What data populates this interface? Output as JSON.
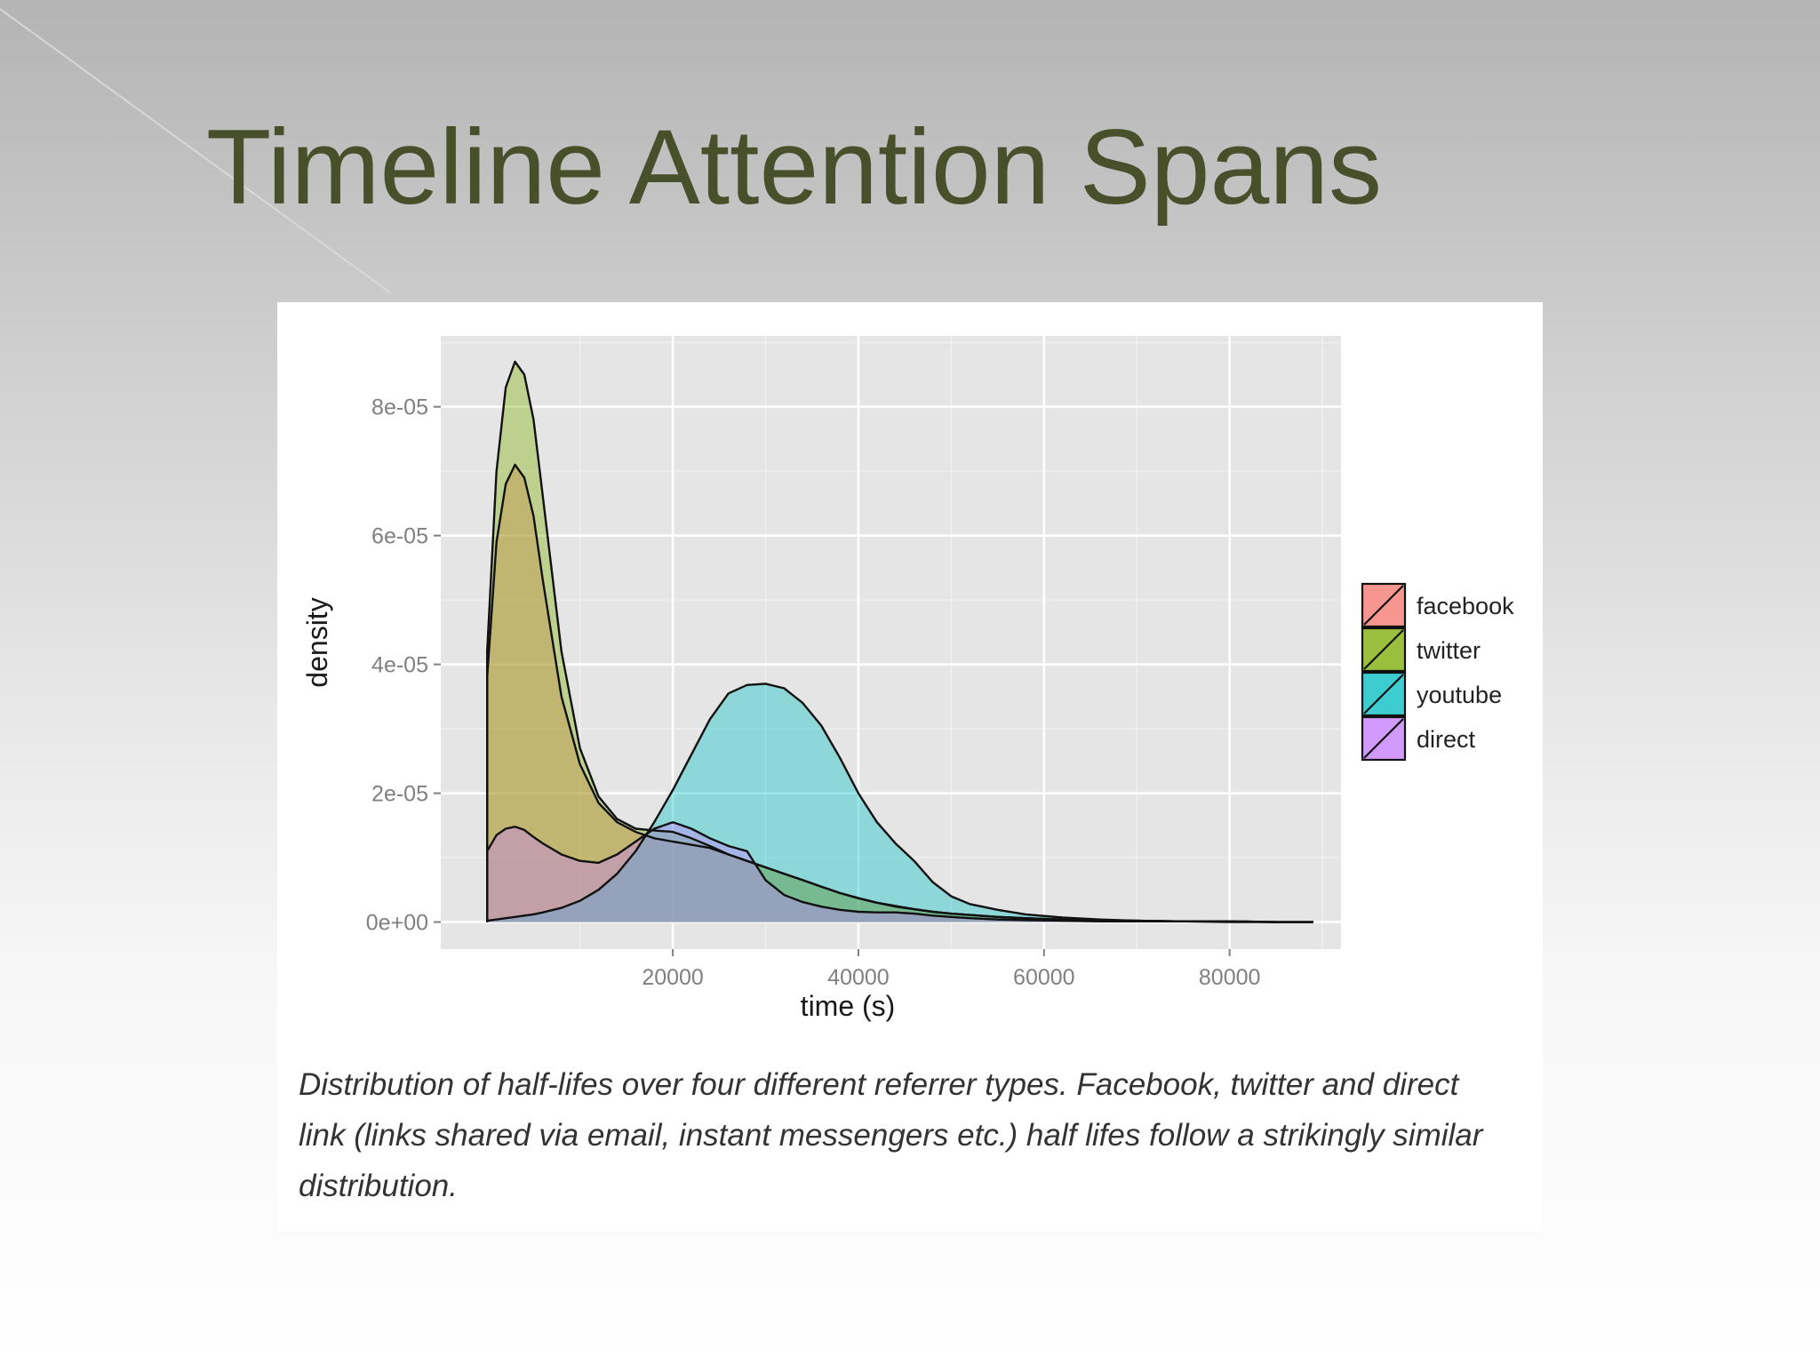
{
  "slide": {
    "title": "Timeline Attention Spans"
  },
  "caption": "Distribution of half-lifes over four different referrer types. Facebook, twitter and direct link (links shared via email, instant messengers etc.) half lifes follow a strikingly similar distribution.",
  "chart_data": {
    "type": "area",
    "title": "",
    "xlabel": "time (s)",
    "ylabel": "density",
    "xlim": [
      -5000,
      92000
    ],
    "ylim": [
      -4.2e-06,
      9.1e-05
    ],
    "x_ticks": [
      20000,
      40000,
      60000,
      80000
    ],
    "x_tick_labels": [
      "20000",
      "40000",
      "60000",
      "80000"
    ],
    "y_ticks": [
      0,
      2e-05,
      4e-05,
      6e-05,
      8e-05
    ],
    "y_tick_labels": [
      "0e+00",
      "2e-05",
      "4e-05",
      "6e-05",
      "8e-05"
    ],
    "grid": true,
    "legend_position": "right",
    "x": [
      0,
      1000,
      2000,
      3000,
      4000,
      5000,
      6000,
      8000,
      10000,
      12000,
      14000,
      16000,
      18000,
      20000,
      22000,
      24000,
      26000,
      28000,
      30000,
      32000,
      34000,
      36000,
      38000,
      40000,
      42000,
      44000,
      46000,
      48000,
      50000,
      52000,
      55000,
      58000,
      62000,
      66000,
      70000,
      75000,
      80000,
      85000,
      89000
    ],
    "series": [
      {
        "name": "facebook",
        "color": "#f8766d",
        "values": [
          3.8e-05,
          5.9e-05,
          6.8e-05,
          7.1e-05,
          6.9e-05,
          6.3e-05,
          5.3e-05,
          3.5e-05,
          2.45e-05,
          1.85e-05,
          1.55e-05,
          1.4e-05,
          1.3e-05,
          1.25e-05,
          1.2e-05,
          1.15e-05,
          1.05e-05,
          9.5e-06,
          8.5e-06,
          7.5e-06,
          6.5e-06,
          5.5e-06,
          4.5e-06,
          3.7e-06,
          3e-06,
          2.4e-06,
          2e-06,
          1.6e-06,
          1.3e-06,
          1.1e-06,
          8e-07,
          6e-07,
          4e-07,
          3e-07,
          2e-07,
          1e-07,
          1e-07,
          0,
          0
        ]
      },
      {
        "name": "twitter",
        "color": "#7cae00",
        "values": [
          4.2e-05,
          7e-05,
          8.3e-05,
          8.7e-05,
          8.5e-05,
          7.8e-05,
          6.6e-05,
          4.2e-05,
          2.7e-05,
          1.95e-05,
          1.6e-05,
          1.45e-05,
          1.42e-05,
          1.4e-05,
          1.3e-05,
          1.18e-05,
          1.05e-05,
          9.5e-06,
          8.5e-06,
          7.5e-06,
          6.5e-06,
          5.5e-06,
          4.5e-06,
          3.7e-06,
          3e-06,
          2.5e-06,
          2e-06,
          1.6e-06,
          1.3e-06,
          1.1e-06,
          8e-07,
          6e-07,
          4e-07,
          3e-07,
          2e-07,
          1e-07,
          1e-07,
          0,
          0
        ]
      },
      {
        "name": "youtube",
        "color": "#00bfc4",
        "values": [
          2e-07,
          4e-07,
          6e-07,
          8e-07,
          1e-06,
          1.2e-06,
          1.5e-06,
          2.2e-06,
          3.3e-06,
          5e-06,
          7.5e-06,
          1.1e-05,
          1.55e-05,
          2.05e-05,
          2.6e-05,
          3.15e-05,
          3.55e-05,
          3.68e-05,
          3.7e-05,
          3.63e-05,
          3.4e-05,
          3.05e-05,
          2.55e-05,
          2e-05,
          1.55e-05,
          1.22e-05,
          9.5e-06,
          6.2e-06,
          4e-06,
          2.8e-06,
          1.9e-06,
          1.2e-06,
          7e-07,
          4e-07,
          2e-07,
          1e-07,
          1e-07,
          0,
          0
        ]
      },
      {
        "name": "direct",
        "color": "#c77cff",
        "values": [
          1.1e-05,
          1.35e-05,
          1.45e-05,
          1.48e-05,
          1.43e-05,
          1.32e-05,
          1.22e-05,
          1.05e-05,
          9.5e-06,
          9.2e-06,
          1.05e-05,
          1.25e-05,
          1.45e-05,
          1.55e-05,
          1.45e-05,
          1.3e-05,
          1.18e-05,
          1.1e-05,
          6.5e-06,
          4.2e-06,
          3.1e-06,
          2.4e-06,
          1.9e-06,
          1.6e-06,
          1.5e-06,
          1.5e-06,
          1.3e-06,
          1e-06,
          8e-07,
          6e-07,
          4e-07,
          3e-07,
          2e-07,
          1e-07,
          1e-07,
          1e-07,
          0,
          0,
          0
        ]
      }
    ]
  }
}
